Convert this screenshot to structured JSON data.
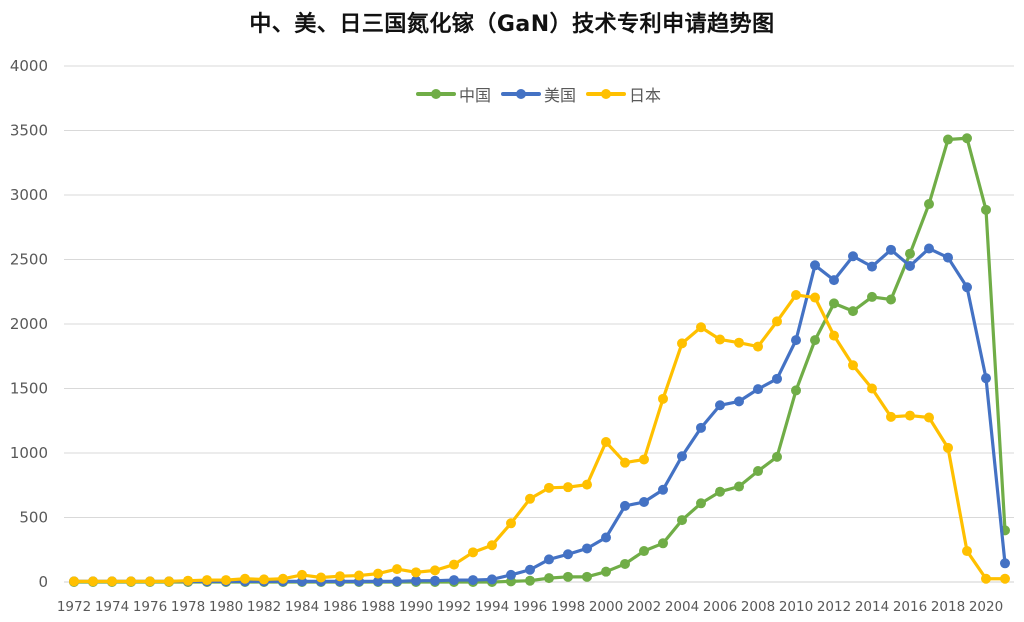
{
  "chart_data": {
    "type": "line",
    "title": "中、美、日三国氮化镓（GaN）技术专利申请趋势图",
    "xlabel": "",
    "ylabel": "",
    "ylim": [
      0,
      4000
    ],
    "yticks": [
      0,
      500,
      1000,
      1500,
      2000,
      2500,
      3000,
      3500,
      4000
    ],
    "xtick_labels": [
      "1972",
      "1974",
      "1976",
      "1978",
      "1980",
      "1982",
      "1984",
      "1986",
      "1988",
      "1990",
      "1992",
      "1994",
      "1996",
      "1998",
      "2000",
      "2002",
      "2004",
      "2006",
      "2008",
      "2010",
      "2012",
      "2014",
      "2016",
      "2018",
      "2020"
    ],
    "grid": "horizontal",
    "legend_position": "top-inside",
    "x": [
      1972,
      1973,
      1974,
      1975,
      1976,
      1977,
      1978,
      1979,
      1980,
      1981,
      1982,
      1983,
      1984,
      1985,
      1986,
      1987,
      1988,
      1989,
      1990,
      1991,
      1992,
      1993,
      1994,
      1995,
      1996,
      1997,
      1998,
      1999,
      2000,
      2001,
      2002,
      2003,
      2004,
      2005,
      2006,
      2007,
      2008,
      2009,
      2010,
      2011,
      2012,
      2013,
      2014,
      2015,
      2016,
      2017,
      2018,
      2019,
      2020,
      2021
    ],
    "series": [
      {
        "name": "中国",
        "color": "#70AD47",
        "values": [
          0,
          0,
          0,
          0,
          0,
          0,
          0,
          0,
          0,
          0,
          0,
          0,
          0,
          0,
          0,
          0,
          0,
          0,
          0,
          0,
          0,
          0,
          0,
          5,
          10,
          30,
          40,
          40,
          80,
          140,
          240,
          300,
          480,
          610,
          700,
          740,
          860,
          970,
          1485,
          1875,
          2160,
          2100,
          2210,
          2190,
          2545,
          2930,
          3430,
          3440,
          2885,
          400
        ]
      },
      {
        "name": "美国",
        "color": "#4472C4",
        "values": [
          5,
          5,
          5,
          5,
          5,
          5,
          5,
          5,
          5,
          5,
          5,
          5,
          5,
          5,
          5,
          5,
          5,
          5,
          10,
          10,
          15,
          15,
          20,
          55,
          95,
          175,
          215,
          260,
          345,
          590,
          620,
          715,
          975,
          1195,
          1370,
          1400,
          1495,
          1575,
          1875,
          2455,
          2340,
          2525,
          2445,
          2575,
          2450,
          2585,
          2515,
          2285,
          1580,
          145
        ]
      },
      {
        "name": "日本",
        "color": "#FFC000",
        "values": [
          5,
          5,
          5,
          5,
          5,
          5,
          10,
          15,
          15,
          25,
          20,
          25,
          55,
          35,
          45,
          50,
          65,
          100,
          75,
          90,
          135,
          230,
          285,
          455,
          645,
          730,
          735,
          755,
          1085,
          925,
          950,
          1420,
          1850,
          1975,
          1880,
          1855,
          1825,
          2020,
          2225,
          2205,
          1910,
          1680,
          1500,
          1280,
          1290,
          1275,
          1040,
          240,
          25,
          25
        ]
      }
    ]
  },
  "legend": {
    "items": [
      {
        "label": "中国",
        "color": "#70AD47"
      },
      {
        "label": "美国",
        "color": "#4472C4"
      },
      {
        "label": "日本",
        "color": "#FFC000"
      }
    ]
  }
}
